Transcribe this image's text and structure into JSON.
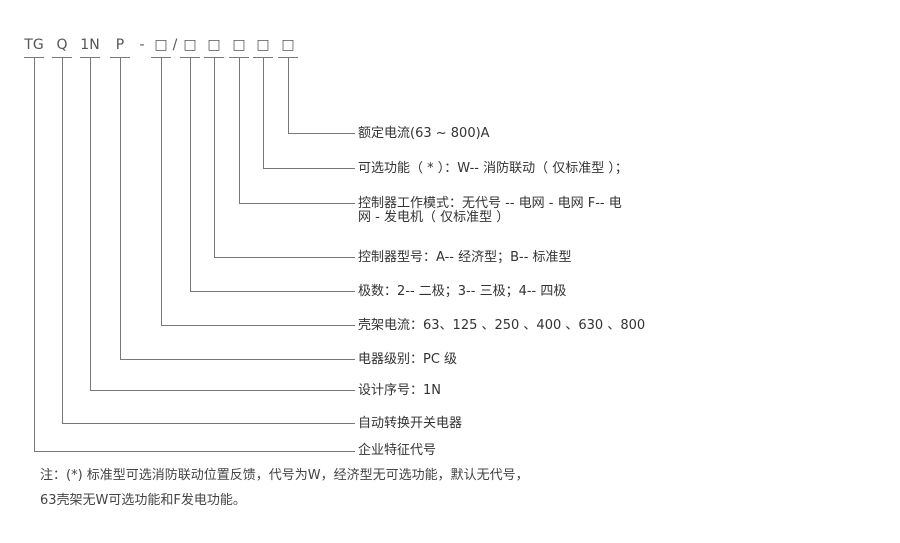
{
  "code_tokens": [
    "TG",
    "Q",
    "1N",
    "P",
    "-",
    "□",
    "/",
    "□",
    "□",
    "□",
    "□",
    "□"
  ],
  "labels": [
    "额定电流(63 ~ 800)A",
    "可选功能（ * ）：W-- 消防联动（ 仅标准型 ）；",
    "控制器工作模式：无代号 -- 电网 - 电网 F-- 电",
    "网 - 发电机（ 仅标准型 ）",
    "控制器型号：A-- 经济型；B-- 标准型",
    "极数：2-- 二极；3-- 三极；4-- 四极",
    "壳架电流：63、125 、250 、400 、630 、800",
    "电器级别：PC 级",
    "设计序号：1N",
    "自动转换开关电器",
    "企业特征代号"
  ],
  "notes": [
    "注：(*) 标准型可选消防联动位置反馈，代号为W，经济型无可选功能，默认无代号，",
    "63壳架无W可选功能和F发电功能。"
  ]
}
